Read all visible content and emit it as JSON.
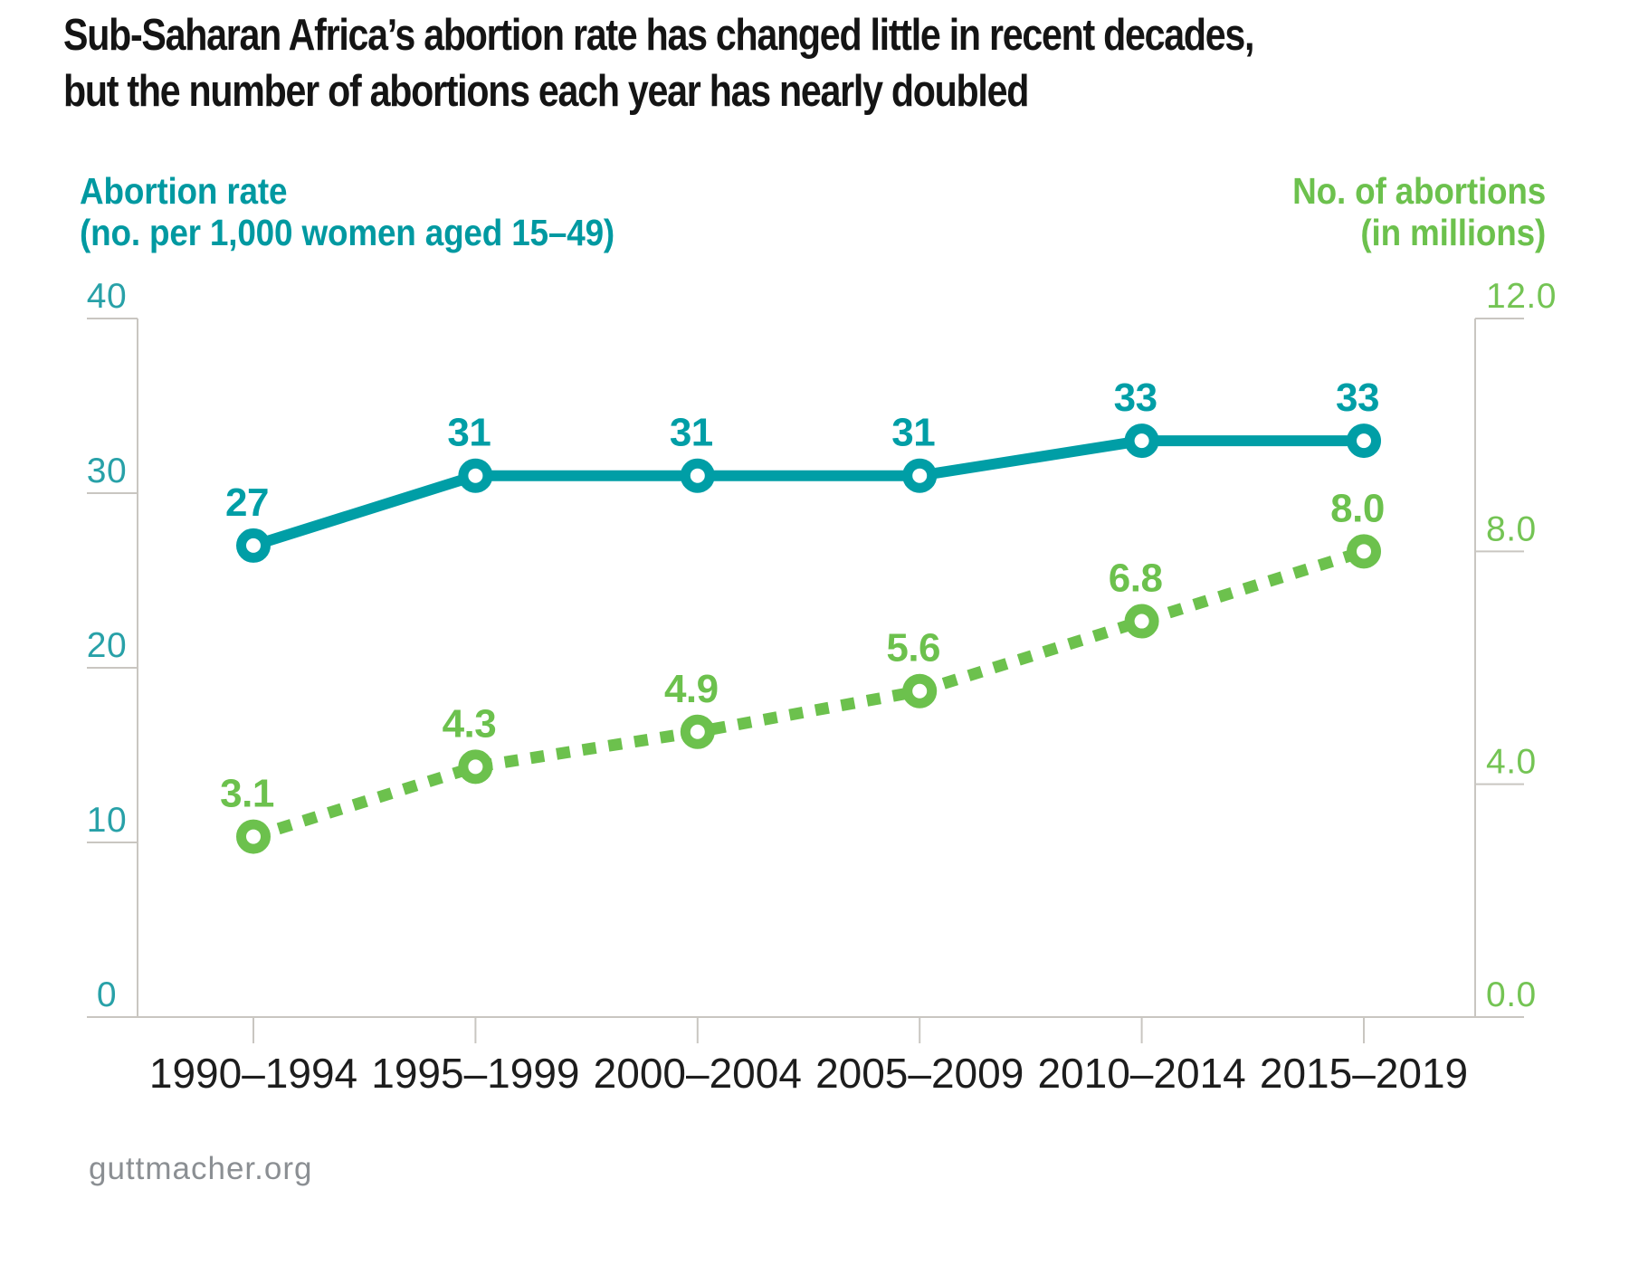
{
  "title": {
    "line1": "Sub-Saharan Africa’s abortion rate has changed little in recent decades,",
    "line2": "but the number of abortions each year has nearly doubled"
  },
  "left_axis": {
    "title": "Abortion rate",
    "subtitle": "(no. per 1,000 women aged 15–49)",
    "ticks": [
      40,
      30,
      20,
      10,
      0
    ],
    "color": "#0099A1",
    "tick_color": "#28A1A8"
  },
  "right_axis": {
    "title": "No. of abortions",
    "subtitle": "(in millions)",
    "ticks": [
      "12.0",
      "8.0",
      "4.0",
      "0.0"
    ],
    "color": "#6CC14D",
    "tick_color": "#74C454"
  },
  "chart_data": {
    "type": "line",
    "title": "Sub-Saharan Africa’s abortion rate has changed little in recent decades, but the number of abortions each year has nearly doubled",
    "categories": [
      "1990–1994",
      "1995–1999",
      "2000–2004",
      "2005–2009",
      "2010–2014",
      "2015–2019"
    ],
    "series": [
      {
        "name": "Abortion rate (no. per 1,000 women aged 15–49)",
        "axis": "left",
        "line_style": "solid",
        "color": "#009EA6",
        "values": [
          27,
          31,
          31,
          31,
          33,
          33
        ],
        "point_labels": [
          "27",
          "31",
          "31",
          "31",
          "33",
          "33"
        ]
      },
      {
        "name": "No. of abortions (in millions)",
        "axis": "right",
        "line_style": "dotted",
        "color": "#6CC14D",
        "values": [
          3.1,
          4.3,
          4.9,
          5.6,
          6.8,
          8.0
        ],
        "point_labels": [
          "3.1",
          "4.3",
          "4.9",
          "5.6",
          "6.8",
          "8.0"
        ]
      }
    ],
    "left_ylim": [
      0,
      40
    ],
    "right_ylim": [
      0,
      12
    ],
    "grid": false,
    "legend": "none"
  },
  "footer": {
    "text": "guttmacher.org"
  },
  "colors": {
    "axis_line": "#C9C6C1",
    "category_label": "#1D1D1D",
    "footer": "#8B8F93",
    "background": "#FFFFFF"
  }
}
